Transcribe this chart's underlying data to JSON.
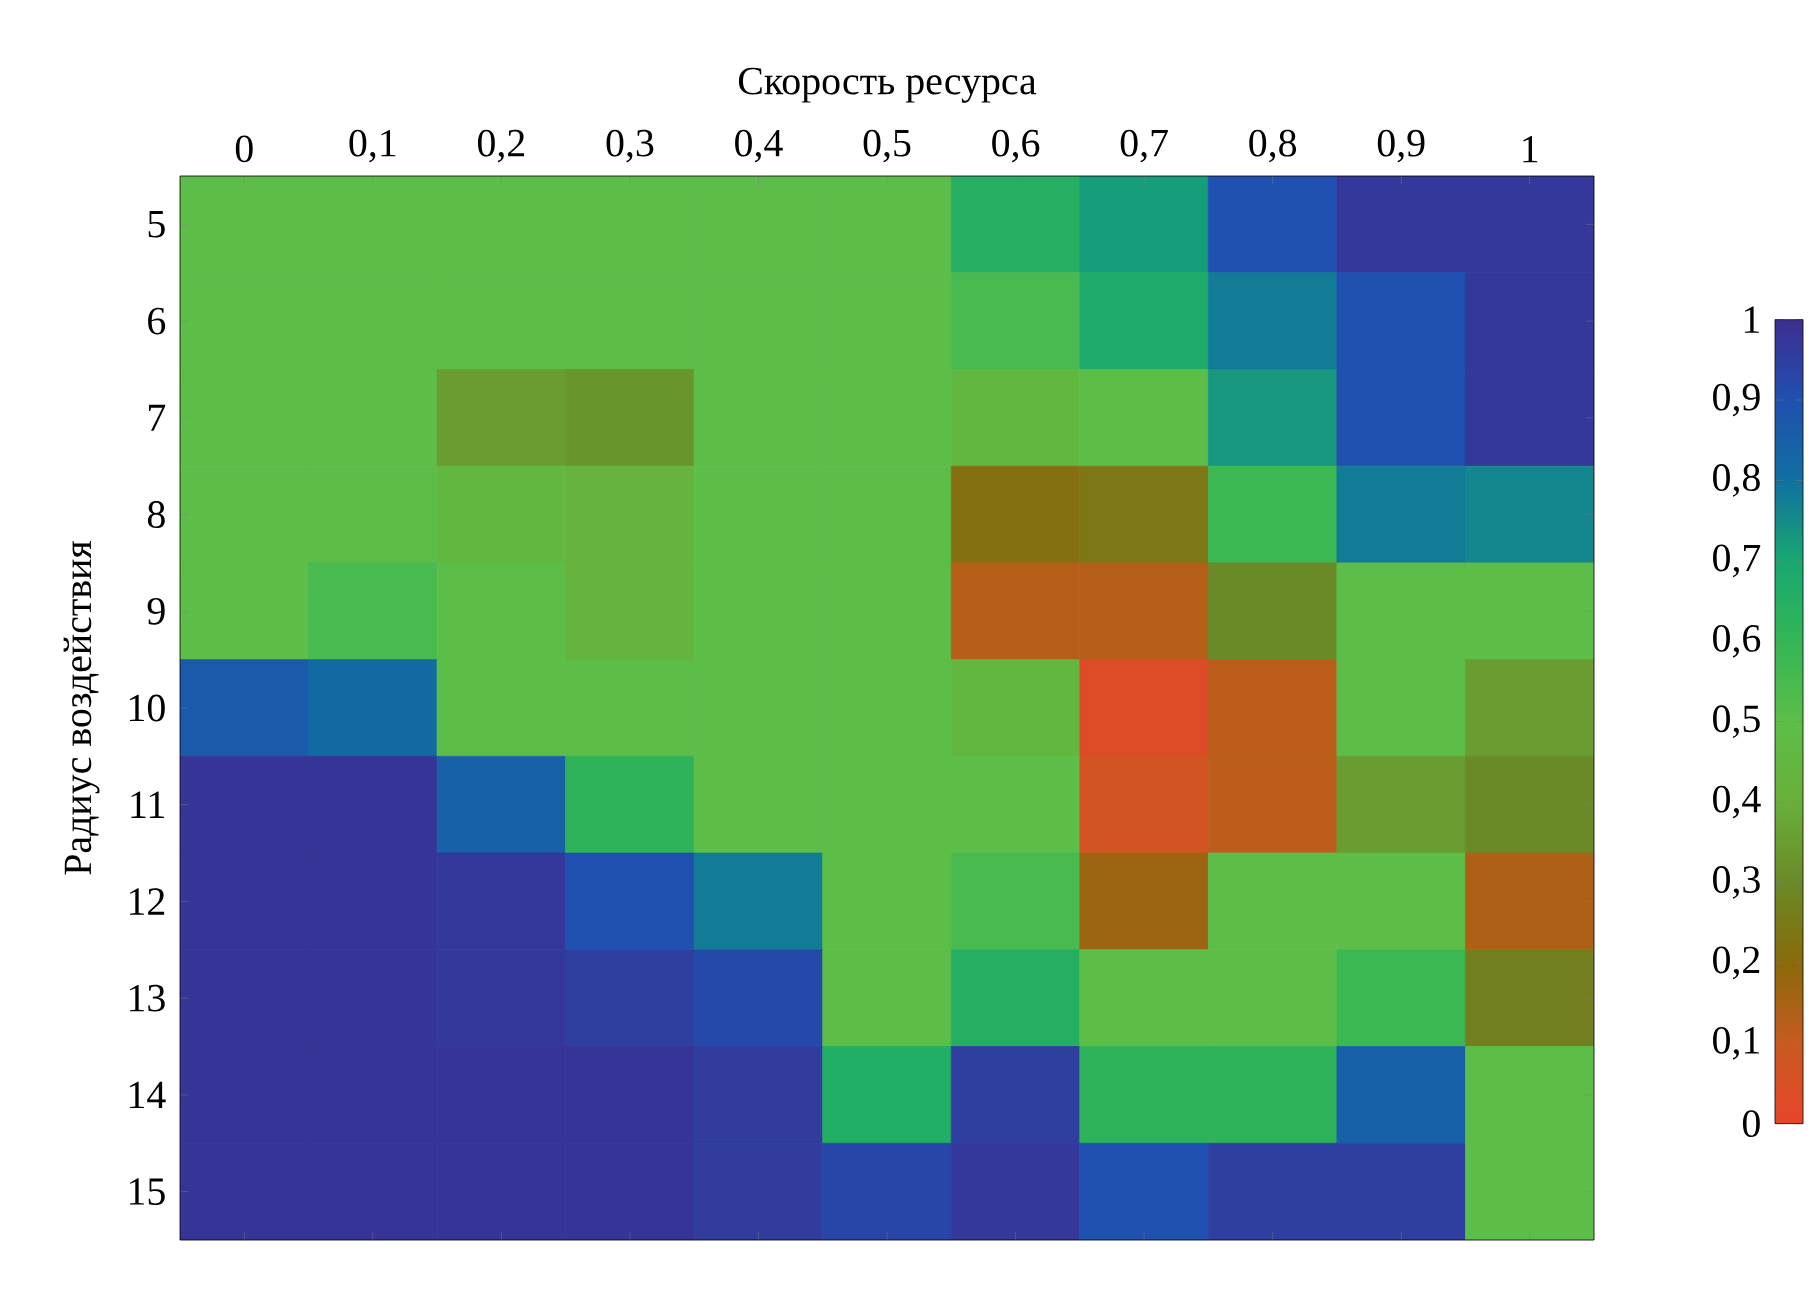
{
  "chart_data": {
    "type": "heatmap",
    "xlabel": "Скорость ресурса",
    "ylabel": "Радиус воздействия",
    "categories": [
      "0",
      "0,1",
      "0,2",
      "0,3",
      "0,4",
      "0,5",
      "0,6",
      "0,7",
      "0,8",
      "0,9",
      "1"
    ],
    "y_categories": [
      "5",
      "6",
      "7",
      "8",
      "9",
      "10",
      "11",
      "12",
      "13",
      "14",
      "15"
    ],
    "cells": [
      [
        0.5,
        0.5,
        0.5,
        0.5,
        0.5,
        0.5,
        0.65,
        0.72,
        0.9,
        0.97,
        0.97
      ],
      [
        0.5,
        0.5,
        0.5,
        0.5,
        0.5,
        0.5,
        0.55,
        0.68,
        0.78,
        0.9,
        0.97
      ],
      [
        0.5,
        0.5,
        0.35,
        0.33,
        0.5,
        0.5,
        0.45,
        0.5,
        0.73,
        0.9,
        0.97
      ],
      [
        0.5,
        0.5,
        0.45,
        0.42,
        0.5,
        0.5,
        0.22,
        0.24,
        0.58,
        0.78,
        0.76
      ],
      [
        0.5,
        0.55,
        0.5,
        0.42,
        0.5,
        0.5,
        0.13,
        0.13,
        0.3,
        0.5,
        0.5
      ],
      [
        0.87,
        0.82,
        0.5,
        0.5,
        0.5,
        0.5,
        0.45,
        0.03,
        0.12,
        0.5,
        0.35
      ],
      [
        0.98,
        0.98,
        0.85,
        0.62,
        0.5,
        0.5,
        0.5,
        0.07,
        0.12,
        0.35,
        0.3
      ],
      [
        0.98,
        0.98,
        0.97,
        0.9,
        0.78,
        0.5,
        0.55,
        0.17,
        0.5,
        0.5,
        0.14
      ],
      [
        0.98,
        0.98,
        0.97,
        0.95,
        0.92,
        0.5,
        0.65,
        0.5,
        0.5,
        0.58,
        0.27
      ],
      [
        0.98,
        0.98,
        0.98,
        0.98,
        0.96,
        0.66,
        0.95,
        0.62,
        0.62,
        0.85,
        0.5
      ],
      [
        0.98,
        0.98,
        0.98,
        0.98,
        0.96,
        0.93,
        0.97,
        0.9,
        0.95,
        0.95,
        0.5
      ]
    ],
    "clim": [
      0,
      1
    ],
    "cticks": [
      0,
      {
        "value": 0.1,
        "label": "0,1"
      },
      {
        "value": 0.2,
        "label": "0,2"
      },
      {
        "value": 0.3,
        "label": "0,3"
      },
      {
        "value": 0.4,
        "label": "0,4"
      },
      {
        "value": 0.5,
        "label": "0,5"
      },
      {
        "value": 0.6,
        "label": "0,6"
      },
      {
        "value": 0.7,
        "label": "0,7"
      },
      {
        "value": 0.8,
        "label": "0,8"
      },
      {
        "value": 0.9,
        "label": "0,9"
      },
      1
    ]
  }
}
